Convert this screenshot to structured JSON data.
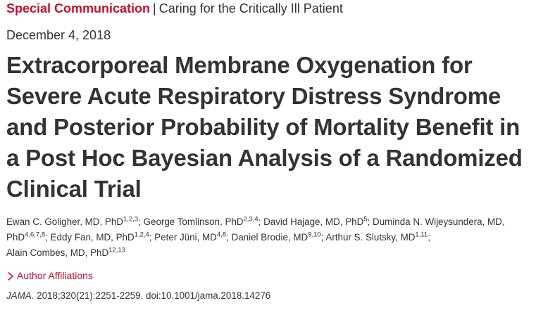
{
  "header": {
    "section_type": "Special Communication",
    "separator": "|",
    "section_topic": "Caring for the Critically Ill Patient"
  },
  "date": "December 4, 2018",
  "title": "Extracorporeal Membrane Oxygenation for Severe Acute Respiratory Distress Syndrome and Posterior Probability of Mortality Benefit in a Post Hoc Bayesian Analysis of a Randomized Clinical Trial",
  "authors": [
    {
      "name": "Ewan C. Goligher, MD, PhD",
      "sup": "1,2,3"
    },
    {
      "name": "George Tomlinson, PhD",
      "sup": "2,3,4"
    },
    {
      "name": "David Hajage, MD, PhD",
      "sup": "5"
    },
    {
      "name": "Duminda N. Wijeysundera, MD, PhD",
      "sup": "4,6,7,8"
    },
    {
      "name": "Eddy Fan, MD, PhD",
      "sup": "1,2,4"
    },
    {
      "name": "Peter Jüni, MD",
      "sup": "4,8"
    },
    {
      "name": "Daniel Brodie, MD",
      "sup": "9,10"
    },
    {
      "name": "Arthur S. Slutsky, MD",
      "sup": "1,11"
    },
    {
      "name": "Alain Combes, MD, PhD",
      "sup": "12,13"
    }
  ],
  "author_separator": ";",
  "affiliations_label": "Author Affiliations",
  "citation": {
    "journal": "JAMA.",
    "details": " 2018;320(21):2251-2259. doi:10.1001/jama.2018.14276"
  },
  "colors": {
    "accent": "#c8102e",
    "text": "#333333"
  },
  "icons": {
    "affiliations_toggle": "chevron-right-icon"
  }
}
